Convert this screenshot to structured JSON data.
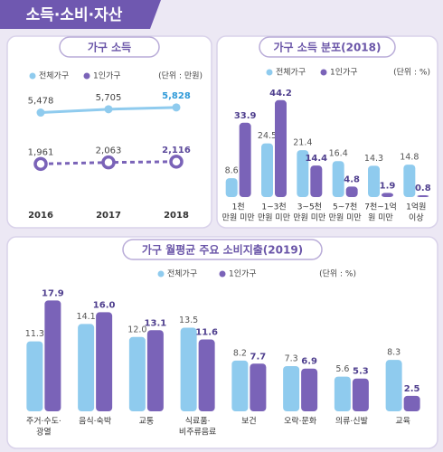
{
  "header": {
    "title": "소득·소비·자산"
  },
  "chart_data": [
    {
      "type": "line",
      "title": "가구 소득",
      "unit_label": "(단위 : 만원)",
      "categories": [
        "2016",
        "2017",
        "2018"
      ],
      "ylim": [
        0,
        6500
      ],
      "series": [
        {
          "name": "전체가구",
          "color": "#8fcbee",
          "values": [
            5478,
            5705,
            5828
          ],
          "value_labels": [
            "5,478",
            "5,705",
            "5,828"
          ]
        },
        {
          "name": "1인가구",
          "color": "#7a63b8",
          "values": [
            1961,
            2063,
            2116
          ],
          "value_labels": [
            "1,961",
            "2,063",
            "2,116"
          ]
        }
      ]
    },
    {
      "type": "bar",
      "title": "가구 소득 분포(2018)",
      "unit_label": "(단위 : %)",
      "categories": [
        [
          "1천",
          "만원 미만"
        ],
        [
          "1~3천",
          "만원 미만"
        ],
        [
          "3~5천",
          "만원 미만"
        ],
        [
          "5~7천",
          "만원 미만"
        ],
        [
          "7천~1억",
          "원 미만"
        ],
        [
          "1억원",
          "이상"
        ]
      ],
      "ylim": [
        0,
        47
      ],
      "series": [
        {
          "name": "전체가구",
          "color": "#8fcbee",
          "values": [
            8.6,
            24.5,
            21.4,
            16.4,
            14.3,
            14.8
          ]
        },
        {
          "name": "1인가구",
          "color": "#7a63b8",
          "values": [
            33.9,
            44.2,
            14.4,
            4.8,
            1.9,
            0.8
          ]
        }
      ]
    },
    {
      "type": "bar",
      "title": "가구 월평균 주요 소비지출(2019)",
      "unit_label": "(단위 : %)",
      "categories": [
        [
          "주거·수도·",
          "광열"
        ],
        [
          "음식·숙박"
        ],
        [
          "교통"
        ],
        [
          "식료품·",
          "비주류음료"
        ],
        [
          "보건"
        ],
        [
          "오락·문화"
        ],
        [
          "의류·신발"
        ],
        [
          "교육"
        ]
      ],
      "ylim": [
        0,
        20
      ],
      "series": [
        {
          "name": "전체가구",
          "color": "#8fcbee",
          "values": [
            11.3,
            14.1,
            12.0,
            13.5,
            8.2,
            7.3,
            5.6,
            8.3
          ],
          "value_labels": [
            "11.3",
            "14.1",
            "12.0",
            "13.5",
            "8.2",
            "7.3",
            "5.6",
            "8.3"
          ]
        },
        {
          "name": "1인가구",
          "color": "#7a63b8",
          "values": [
            17.9,
            16.0,
            13.1,
            11.6,
            7.7,
            6.9,
            5.3,
            2.5
          ],
          "value_labels": [
            "17.9",
            "16.0",
            "13.1",
            "11.6",
            "7.7",
            "6.9",
            "5.3",
            "2.5"
          ]
        }
      ]
    }
  ]
}
